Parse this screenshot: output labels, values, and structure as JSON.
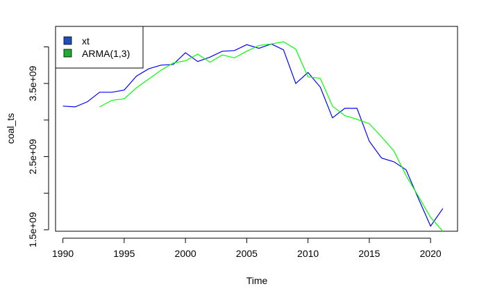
{
  "chart_data": {
    "type": "line",
    "title": "",
    "xlabel": "Time",
    "ylabel": "coal_ts",
    "xlim": [
      1989.4,
      2022.2
    ],
    "ylim": [
      1480000000,
      4280000000
    ],
    "x_ticks": [
      1990,
      1995,
      2000,
      2005,
      2010,
      2015,
      2020
    ],
    "x_tick_labels": [
      "1990",
      "1995",
      "2000",
      "2005",
      "2010",
      "2015",
      "2020"
    ],
    "y_ticks": [
      1500000000,
      2000000000,
      2500000000,
      3000000000,
      3500000000,
      4000000000
    ],
    "y_tick_labels": [
      "1.5e+09",
      "",
      "2.5e+09",
      "",
      "3.5e+09",
      ""
    ],
    "grid": false,
    "legend_position": "top-left",
    "series": [
      {
        "name": "xt",
        "color": "#0000ff",
        "legend_color": "#1f4fbf",
        "x": [
          1990,
          1991,
          1992,
          1993,
          1994,
          1995,
          1996,
          1997,
          1998,
          1999,
          2000,
          2001,
          2002,
          2003,
          2004,
          2005,
          2006,
          2007,
          2008,
          2009,
          2010,
          2011,
          2012,
          2013,
          2014,
          2015,
          2016,
          2017,
          2018,
          2019,
          2020,
          2021
        ],
        "values": [
          3190000000,
          3180000000,
          3250000000,
          3380000000,
          3380000000,
          3410000000,
          3600000000,
          3700000000,
          3750000000,
          3760000000,
          3920000000,
          3800000000,
          3860000000,
          3940000000,
          3950000000,
          4030000000,
          3980000000,
          4040000000,
          3960000000,
          3500000000,
          3650000000,
          3450000000,
          3030000000,
          3160000000,
          3160000000,
          2710000000,
          2480000000,
          2430000000,
          2320000000,
          1930000000,
          1550000000,
          1790000000
        ]
      },
      {
        "name": "ARMA(1,3)",
        "color": "#00ff00",
        "legend_color": "#22aa33",
        "x": [
          1993,
          1994,
          1995,
          1996,
          1997,
          1998,
          1999,
          2000,
          2001,
          2002,
          2003,
          2004,
          2005,
          2006,
          2007,
          2008,
          2009,
          2010,
          2011,
          2012,
          2013,
          2014,
          2015,
          2016,
          2017,
          2018,
          2019,
          2020,
          2021
        ],
        "values": [
          3180000000,
          3270000000,
          3290000000,
          3440000000,
          3560000000,
          3680000000,
          3780000000,
          3810000000,
          3900000000,
          3790000000,
          3890000000,
          3850000000,
          3940000000,
          4020000000,
          4040000000,
          4070000000,
          3970000000,
          3590000000,
          3570000000,
          3190000000,
          3060000000,
          3010000000,
          2950000000,
          2770000000,
          2580000000,
          2240000000,
          1960000000,
          1670000000,
          1480000000
        ]
      }
    ]
  }
}
